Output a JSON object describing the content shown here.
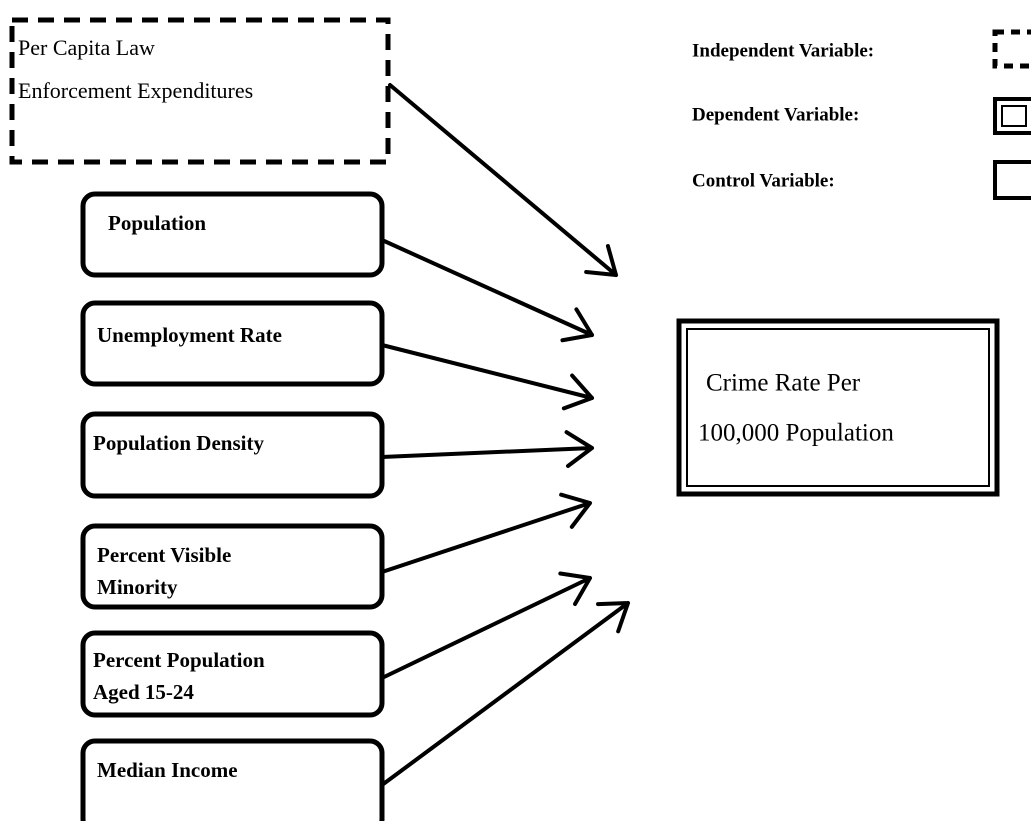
{
  "independent_variable": {
    "lines": [
      "Per Capita Law",
      "Enforcement Expenditures"
    ]
  },
  "control_variables": [
    {
      "lines": [
        "Population"
      ]
    },
    {
      "lines": [
        "Unemployment Rate"
      ]
    },
    {
      "lines": [
        "Population Density"
      ]
    },
    {
      "lines": [
        "Percent Visible",
        "Minority"
      ]
    },
    {
      "lines": [
        "Percent Population",
        "Aged 15-24"
      ]
    },
    {
      "lines": [
        "Median Income"
      ]
    }
  ],
  "dependent_variable": {
    "lines": [
      "Crime Rate Per",
      "100,000 Population"
    ]
  },
  "legend": {
    "items": [
      {
        "label": "Independent Variable:"
      },
      {
        "label": "Dependent Variable:"
      },
      {
        "label": "Control Variable:"
      }
    ]
  }
}
